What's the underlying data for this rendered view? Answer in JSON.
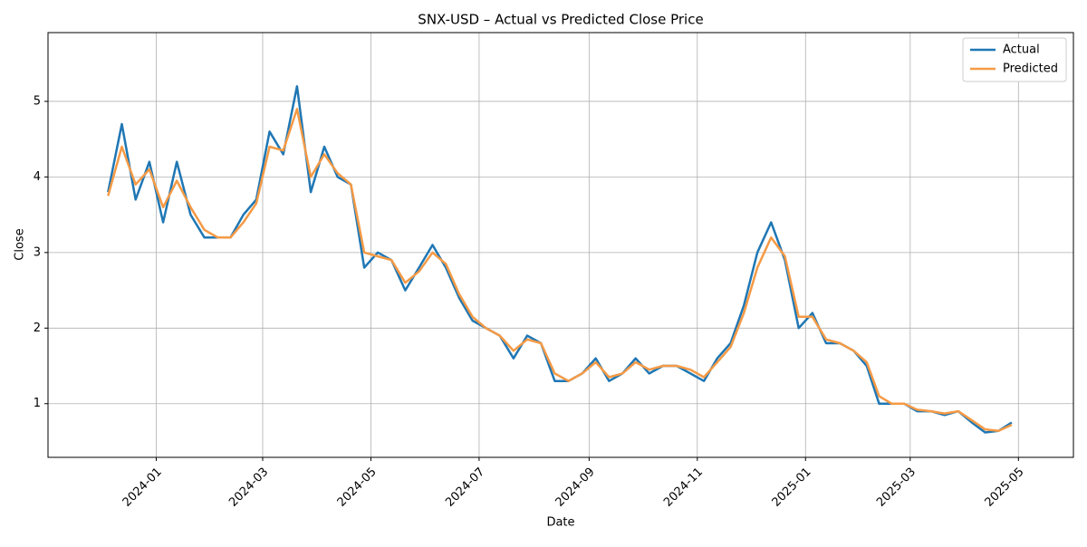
{
  "chart_data": {
    "type": "line",
    "title": "SNX-USD – Actual vs Predicted Close Price",
    "x_label": "Date",
    "y_label": "Close",
    "x": [
      "2023-12",
      "2023-12",
      "2023-12",
      "2023-12",
      "2024-01",
      "2024-01",
      "2024-01",
      "2024-01",
      "2024-02",
      "2024-02",
      "2024-02",
      "2024-02",
      "2024-03",
      "2024-03",
      "2024-03",
      "2024-03",
      "2024-04",
      "2024-04",
      "2024-04",
      "2024-04",
      "2024-05",
      "2024-05",
      "2024-05",
      "2024-05",
      "2024-06",
      "2024-06",
      "2024-06",
      "2024-06",
      "2024-07",
      "2024-07",
      "2024-07",
      "2024-07",
      "2024-08",
      "2024-08",
      "2024-08",
      "2024-08",
      "2024-09",
      "2024-09",
      "2024-09",
      "2024-09",
      "2024-10",
      "2024-10",
      "2024-10",
      "2024-10",
      "2024-11",
      "2024-11",
      "2024-11",
      "2024-11",
      "2024-12",
      "2024-12",
      "2024-12",
      "2024-12",
      "2025-01",
      "2025-01",
      "2025-01",
      "2025-01",
      "2025-02",
      "2025-02",
      "2025-02",
      "2025-02",
      "2025-03",
      "2025-03",
      "2025-03",
      "2025-03",
      "2025-04",
      "2025-04",
      "2025-04",
      "2025-04"
    ],
    "series": [
      {
        "name": "Actual",
        "color": "#1f77b4",
        "values": [
          3.8,
          4.7,
          3.7,
          4.2,
          3.4,
          4.2,
          3.5,
          3.2,
          3.2,
          3.2,
          3.5,
          3.7,
          4.6,
          4.3,
          5.2,
          3.8,
          4.4,
          4.0,
          3.9,
          2.8,
          3.0,
          2.9,
          2.5,
          2.8,
          3.1,
          2.8,
          2.4,
          2.1,
          2.0,
          1.9,
          1.6,
          1.9,
          1.8,
          1.3,
          1.3,
          1.4,
          1.6,
          1.3,
          1.4,
          1.6,
          1.4,
          1.5,
          1.5,
          1.4,
          1.3,
          1.6,
          1.8,
          2.3,
          3.0,
          3.4,
          2.9,
          2.0,
          2.2,
          1.8,
          1.8,
          1.7,
          1.5,
          1.0,
          1.0,
          1.0,
          0.9,
          0.9,
          0.85,
          0.9,
          0.75,
          0.62,
          0.64,
          0.75
        ]
      },
      {
        "name": "Predicted",
        "color": "#f59a45",
        "values": [
          3.75,
          4.4,
          3.9,
          4.1,
          3.6,
          3.95,
          3.6,
          3.3,
          3.2,
          3.2,
          3.4,
          3.65,
          4.4,
          4.35,
          4.9,
          4.0,
          4.3,
          4.05,
          3.9,
          3.0,
          2.95,
          2.9,
          2.6,
          2.75,
          3.0,
          2.85,
          2.45,
          2.15,
          2.0,
          1.9,
          1.7,
          1.85,
          1.8,
          1.4,
          1.3,
          1.4,
          1.55,
          1.35,
          1.4,
          1.55,
          1.45,
          1.5,
          1.5,
          1.45,
          1.35,
          1.55,
          1.75,
          2.2,
          2.8,
          3.2,
          2.95,
          2.15,
          2.15,
          1.85,
          1.8,
          1.7,
          1.55,
          1.1,
          1.0,
          1.0,
          0.92,
          0.9,
          0.87,
          0.9,
          0.78,
          0.66,
          0.64,
          0.72
        ]
      }
    ],
    "xlim": [
      "2023-11",
      "2025-06"
    ],
    "xticks": [
      "2024-01",
      "2024-03",
      "2024-05",
      "2024-07",
      "2024-09",
      "2024-11",
      "2025-01",
      "2025-03",
      "2025-05"
    ],
    "ylim": [
      0.29,
      5.91
    ],
    "yticks": [
      1,
      2,
      3,
      4,
      5
    ],
    "grid": true,
    "legend": "upper-right"
  }
}
